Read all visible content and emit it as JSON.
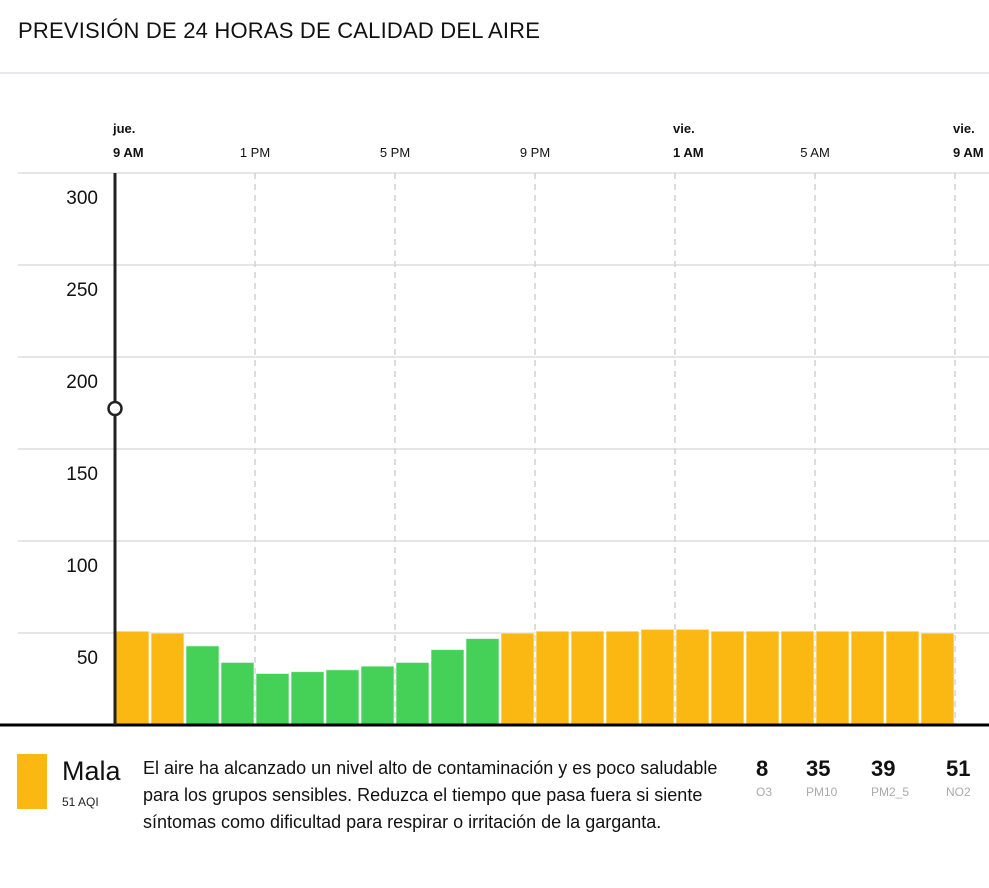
{
  "title": "PREVISIÓN DE 24 HORAS DE CALIDAD DEL AIRE",
  "colors": {
    "good": "#45d158",
    "bad": "#fbb813",
    "marker": "#222222"
  },
  "chart_data": {
    "type": "bar",
    "ylim": [
      0,
      300
    ],
    "yticks": [
      "50",
      "100",
      "150",
      "200",
      "250",
      "300"
    ],
    "grid": true,
    "xticks": [
      {
        "day": "jue.",
        "time": "9 AM",
        "bold": true
      },
      {
        "day": "",
        "time": "1 PM",
        "bold": false
      },
      {
        "day": "",
        "time": "5 PM",
        "bold": false
      },
      {
        "day": "",
        "time": "9 PM",
        "bold": false
      },
      {
        "day": "vie.",
        "time": "1 AM",
        "bold": true
      },
      {
        "day": "",
        "time": "5 AM",
        "bold": false
      },
      {
        "day": "vie.",
        "time": "9 AM",
        "bold": true
      }
    ],
    "values": [
      51,
      50,
      43,
      34,
      28,
      29,
      30,
      32,
      34,
      41,
      47,
      50,
      51,
      51,
      51,
      52,
      52,
      51,
      51,
      51,
      51,
      51,
      51,
      50
    ],
    "categories_color": [
      "bad",
      "bad",
      "good",
      "good",
      "good",
      "good",
      "good",
      "good",
      "good",
      "good",
      "good",
      "bad",
      "bad",
      "bad",
      "bad",
      "bad",
      "bad",
      "bad",
      "bad",
      "bad",
      "bad",
      "bad",
      "bad",
      "bad"
    ],
    "marker_value": 172
  },
  "summary": {
    "category": "Mala",
    "aqi": "51 AQI",
    "description": "El aire ha alcanzado un nivel alto de contaminación y es poco saludable para los grupos sensibles. Reduzca el tiempo que pasa fuera si siente síntomas como dificultad para respirar o irritación de la garganta.",
    "pollutants": [
      {
        "value": "8",
        "name": "O3"
      },
      {
        "value": "35",
        "name": "PM10"
      },
      {
        "value": "39",
        "name": "PM2_5"
      },
      {
        "value": "51",
        "name": "NO2"
      }
    ]
  }
}
